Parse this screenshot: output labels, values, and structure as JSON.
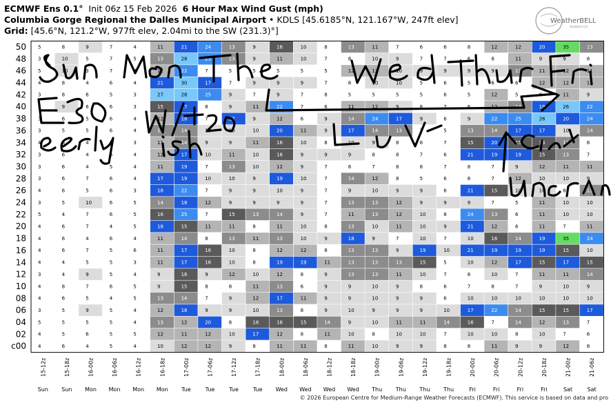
{
  "header": {
    "model": "ECMWF Ens 0.1",
    "init": "Init 06z 15 Feb 2026",
    "product": "6 Hour Max Wind Gust (mph)",
    "site": "Columbia Gorge Regional the Dalles Municipal Airport",
    "site_info": "• KDLS [45.6185°N, 121.167°W, 247ft elev]",
    "grid_label": "Grid:",
    "grid_info": "[45.6°N, 121.2°W, 977ft elev, 2.04mi to the SW (231.3)°]"
  },
  "logo": {
    "text": "WeatherBELL",
    "sub": "Analytics LLC"
  },
  "footer": "© 2026 European Centre for Medium-Range Weather Forecasts (ECMWF). This service is based on data and pro",
  "annotations": [
    "Sun",
    "Mon",
    "Tue",
    "Wed",
    "Thur",
    "Fri",
    "E30",
    "W/20",
    "early",
    "ish",
    "Uncertain"
  ],
  "colors": {
    "c0": "#ffffff",
    "c1": "#dcdcdc",
    "c2": "#b4b4b4",
    "c3": "#8c8c8c",
    "c4": "#5a5a5a",
    "c5": "#1e5adc",
    "c6": "#3c8cf0",
    "c7": "#78c8fa",
    "c8": "#64dc64"
  },
  "chart_data": {
    "type": "table",
    "y_members": [
      "50",
      "48",
      "46",
      "44",
      "42",
      "40",
      "38",
      "36",
      "34",
      "32",
      "30",
      "28",
      "26",
      "24",
      "22",
      "20",
      "18",
      "16",
      "14",
      "12",
      "10",
      "08",
      "06",
      "04",
      "02",
      "c00"
    ],
    "times": [
      "15-12z",
      "15-18z",
      "16-00z",
      "16-06z",
      "16-12z",
      "16-18z",
      "17-00z",
      "17-06z",
      "17-12z",
      "17-18z",
      "18-00z",
      "18-06z",
      "18-12z",
      "18-18z",
      "19-00z",
      "19-06z",
      "19-12z",
      "19-18z",
      "20-00z",
      "20-06z",
      "20-12z",
      "20-18z",
      "21-00z",
      "21-06z"
    ],
    "days": [
      "Sun",
      "Sun",
      "Mon",
      "Mon",
      "Mon",
      "Mon",
      "Tue",
      "Tue",
      "Tue",
      "Tue",
      "Wed",
      "Wed",
      "Wed",
      "Wed",
      "Thu",
      "Thu",
      "Thu",
      "Thu",
      "Fri",
      "Fri",
      "Fri",
      "Fri",
      "Sat",
      "Sat"
    ],
    "values": [
      [
        5,
        8,
        9,
        7,
        4,
        11,
        21,
        24,
        13,
        9,
        16,
        10,
        8,
        13,
        11,
        7,
        6,
        6,
        8,
        12,
        12,
        20,
        35,
        13
      ],
      [
        3,
        10,
        5,
        7,
        5,
        13,
        28,
        25,
        13,
        9,
        11,
        10,
        7,
        8,
        10,
        9,
        7,
        7,
        6,
        8,
        11,
        9,
        9,
        8
      ],
      [
        5,
        10,
        3,
        7,
        4,
        12,
        22,
        7,
        5,
        5,
        5,
        5,
        5,
        12,
        12,
        10,
        9,
        9,
        9,
        9,
        13,
        11,
        12,
        11
      ],
      [
        4,
        8,
        4,
        6,
        4,
        21,
        30,
        17,
        7,
        9,
        9,
        9,
        7,
        8,
        10,
        10,
        5,
        6,
        5,
        6,
        6,
        12,
        12,
        12
      ],
      [
        3,
        8,
        6,
        5,
        3,
        27,
        28,
        25,
        9,
        7,
        9,
        7,
        8,
        5,
        5,
        5,
        5,
        6,
        5,
        12,
        5,
        8,
        11,
        9
      ],
      [
        3,
        9,
        6,
        6,
        3,
        15,
        17,
        8,
        9,
        11,
        22,
        7,
        6,
        11,
        12,
        9,
        8,
        7,
        6,
        12,
        14,
        19,
        26,
        22
      ],
      [
        3,
        6,
        5,
        6,
        4,
        12,
        18,
        7,
        17,
        9,
        12,
        6,
        9,
        14,
        24,
        17,
        9,
        6,
        9,
        22,
        25,
        26,
        20,
        24
      ],
      [
        3,
        5,
        5,
        6,
        4,
        13,
        14,
        10,
        10,
        10,
        20,
        11,
        9,
        17,
        14,
        13,
        7,
        5,
        13,
        14,
        17,
        17,
        10,
        14
      ],
      [
        4,
        6,
        4,
        6,
        3,
        11,
        14,
        9,
        9,
        11,
        16,
        10,
        8,
        10,
        9,
        8,
        6,
        7,
        15,
        20,
        15,
        16,
        13,
        8
      ],
      [
        3,
        6,
        4,
        6,
        4,
        12,
        17,
        10,
        11,
        10,
        16,
        9,
        9,
        9,
        8,
        8,
        7,
        6,
        21,
        19,
        19,
        15,
        13,
        7
      ],
      [
        3,
        6,
        4,
        5,
        4,
        11,
        19,
        7,
        13,
        10,
        12,
        9,
        7,
        8,
        7,
        8,
        8,
        7,
        8,
        7,
        9,
        12,
        11,
        11
      ],
      [
        3,
        6,
        7,
        6,
        4,
        17,
        19,
        10,
        10,
        9,
        19,
        10,
        7,
        14,
        12,
        8,
        5,
        6,
        8,
        7,
        12,
        10,
        10,
        9
      ],
      [
        4,
        6,
        5,
        6,
        3,
        18,
        22,
        7,
        9,
        9,
        10,
        9,
        7,
        9,
        10,
        9,
        9,
        6,
        21,
        15,
        10,
        10,
        8,
        13
      ],
      [
        3,
        5,
        10,
        6,
        5,
        14,
        18,
        12,
        9,
        9,
        9,
        9,
        7,
        13,
        13,
        12,
        9,
        9,
        9,
        7,
        5,
        11,
        10,
        10
      ],
      [
        5,
        4,
        7,
        6,
        5,
        16,
        25,
        7,
        15,
        13,
        14,
        9,
        7,
        11,
        13,
        12,
        10,
        8,
        24,
        13,
        6,
        11,
        10,
        10
      ],
      [
        4,
        6,
        7,
        4,
        5,
        18,
        15,
        11,
        11,
        8,
        11,
        10,
        8,
        13,
        10,
        11,
        10,
        9,
        21,
        12,
        6,
        11,
        7,
        11
      ],
      [
        4,
        6,
        4,
        6,
        4,
        11,
        14,
        8,
        13,
        11,
        13,
        10,
        9,
        18,
        9,
        7,
        10,
        7,
        10,
        16,
        14,
        19,
        35,
        24
      ],
      [
        4,
        6,
        7,
        5,
        6,
        11,
        17,
        16,
        10,
        8,
        12,
        12,
        8,
        13,
        13,
        9,
        19,
        10,
        21,
        19,
        19,
        19,
        15,
        10
      ],
      [
        4,
        4,
        5,
        5,
        3,
        11,
        17,
        16,
        10,
        8,
        19,
        19,
        11,
        13,
        13,
        13,
        15,
        5,
        10,
        12,
        17,
        15,
        17,
        15
      ],
      [
        3,
        4,
        9,
        5,
        4,
        9,
        16,
        9,
        12,
        10,
        12,
        8,
        9,
        13,
        13,
        11,
        10,
        7,
        8,
        10,
        7,
        11,
        11,
        14
      ],
      [
        4,
        8,
        7,
        6,
        5,
        9,
        15,
        8,
        8,
        11,
        13,
        6,
        9,
        9,
        10,
        9,
        8,
        6,
        7,
        8,
        7,
        9,
        10,
        9
      ],
      [
        4,
        6,
        5,
        4,
        5,
        13,
        14,
        7,
        9,
        12,
        17,
        11,
        9,
        9,
        10,
        9,
        9,
        6,
        10,
        10,
        10,
        10,
        10,
        10
      ],
      [
        3,
        5,
        9,
        5,
        4,
        12,
        18,
        9,
        9,
        10,
        13,
        8,
        9,
        10,
        9,
        9,
        9,
        10,
        17,
        22,
        14,
        15,
        15,
        17
      ],
      [
        5,
        5,
        5,
        5,
        4,
        13,
        12,
        20,
        8,
        16,
        16,
        15,
        14,
        9,
        10,
        11,
        11,
        14,
        16,
        7,
        14,
        12,
        13,
        7
      ],
      [
        4,
        5,
        6,
        5,
        5,
        12,
        11,
        12,
        10,
        17,
        12,
        8,
        11,
        10,
        8,
        10,
        10,
        7,
        10,
        10,
        8,
        10,
        7,
        6
      ],
      [
        4,
        6,
        4,
        5,
        4,
        10,
        12,
        12,
        9,
        8,
        11,
        11,
        8,
        11,
        10,
        9,
        9,
        8,
        8,
        11,
        9,
        9,
        12,
        8
      ]
    ]
  }
}
